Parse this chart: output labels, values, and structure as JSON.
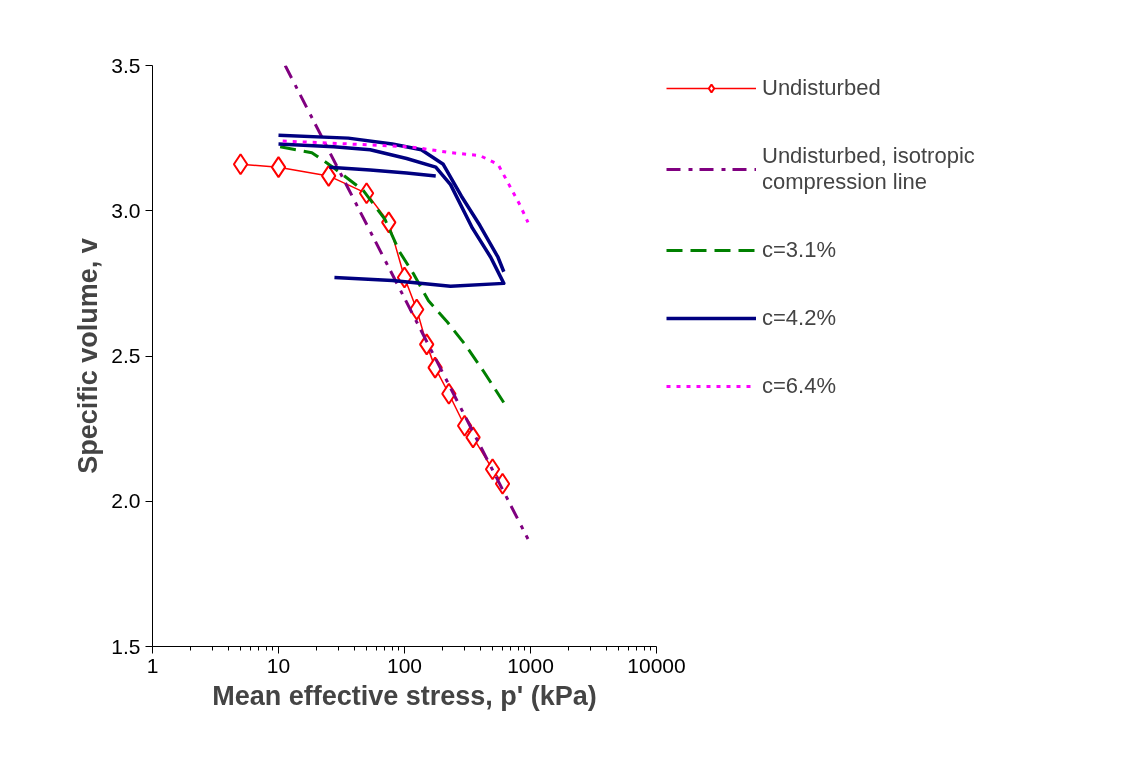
{
  "chart_data": {
    "type": "line",
    "xlabel": "Mean effective stress, p' (kPa)",
    "ylabel": "Specific volume, v",
    "log": "x",
    "xlim": [
      1,
      10000
    ],
    "xticks": [
      1,
      10,
      100,
      1000,
      10000
    ],
    "ylim": [
      1.5,
      3.5
    ],
    "yticks": [
      1.5,
      {
        "value": 2.0,
        "label": "2.0"
      },
      2.5,
      {
        "value": 3.0,
        "label": "3.0"
      },
      3.5
    ],
    "grid": false,
    "legend": "right",
    "series": [
      {
        "name": "Undisturbed",
        "color": "#ff0000",
        "marker": "diamond",
        "line_style": "solid",
        "x": [
          5,
          10,
          25,
          50,
          75,
          100,
          125,
          150,
          175,
          225,
          300,
          350,
          500,
          600
        ],
        "values": [
          3.16,
          3.15,
          3.12,
          3.06,
          2.96,
          2.77,
          2.66,
          2.54,
          2.46,
          2.37,
          2.26,
          2.22,
          2.11,
          2.06
        ]
      },
      {
        "name": "Undisturbed, isotropic compression line",
        "color": "#800080",
        "marker": "none",
        "line_style": "dashdot",
        "x": [
          11.3,
          955
        ],
        "values": [
          3.5,
          1.87
        ]
      },
      {
        "name": "c=3.1%",
        "color": "#008000",
        "marker": "none",
        "line_style": "dashed",
        "x": [
          10.3,
          18.4,
          27,
          47,
          70,
          91,
          119,
          155,
          216,
          302,
          420,
          613
        ],
        "values": [
          3.22,
          3.2,
          3.15,
          3.07,
          2.97,
          2.86,
          2.78,
          2.69,
          2.62,
          2.54,
          2.45,
          2.34
        ]
      },
      {
        "name": "c=4.2%",
        "color": "#000080",
        "marker": "none",
        "line_style": "solid",
        "x": [
          10,
          27.4,
          53.4,
          104,
          177,
          232,
          346,
          483,
          614,
          232,
          80,
          27.8,
          null,
          10,
          35.8,
          80,
          136,
          203,
          283,
          396,
          552,
          614,
          null,
          25.3,
          53.4,
          104,
          177
        ],
        "values": [
          3.23,
          3.22,
          3.21,
          3.18,
          3.15,
          3.09,
          2.94,
          2.84,
          2.75,
          2.74,
          2.76,
          2.77,
          null,
          3.26,
          3.25,
          3.23,
          3.21,
          3.16,
          3.05,
          2.95,
          2.84,
          2.79,
          null,
          3.15,
          3.14,
          3.13,
          3.12
        ]
      },
      {
        "name": "c=6.4%",
        "color": "#ff00ff",
        "marker": "none",
        "line_style": "dotted",
        "x": [
          10.8,
          35.8,
          111,
          232,
          396,
          552,
          675,
          824,
          955
        ],
        "values": [
          3.24,
          3.23,
          3.22,
          3.2,
          3.19,
          3.16,
          3.09,
          3.02,
          2.96
        ]
      }
    ]
  }
}
